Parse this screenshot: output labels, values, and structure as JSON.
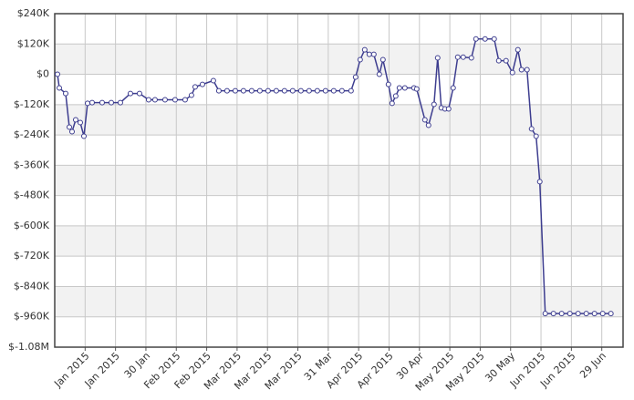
{
  "chart_data": {
    "type": "line",
    "x": [
      0.9,
      1.5,
      3.6,
      4.8,
      5.7,
      6.9,
      8.4,
      9.6,
      10.8,
      12.3,
      15.6,
      18.6,
      21.6,
      24.9,
      27.9,
      30.9,
      33,
      36.3,
      39.6,
      42.9,
      45,
      46.2,
      48.6,
      52.2,
      54,
      56.7,
      59.4,
      62.1,
      64.8,
      67.5,
      70.2,
      72.9,
      75.6,
      78.3,
      81,
      83.7,
      86.4,
      89.1,
      91.8,
      94.5,
      97.5,
      99,
      100.5,
      102,
      103.5,
      105,
      106.8,
      108,
      109.8,
      111,
      112.2,
      113.4,
      115.2,
      118.2,
      119.1,
      121.8,
      123,
      124.8,
      126,
      127.2,
      128.4,
      129.6,
      131.1,
      132.6,
      134.4,
      137.1,
      138.6,
      141.6,
      144.6,
      146.1,
      148.5,
      150.6,
      152.4,
      153.6,
      155.4,
      156.9,
      158.4,
      159.6,
      161.4,
      164.1,
      166.8,
      169.5,
      172.2,
      174.9,
      177.6,
      180.3,
      183
    ],
    "series": [
      {
        "color": "#3d3d8f",
        "values": [
          0,
          -54000,
          -76000,
          -209000,
          -227000,
          -180000,
          -191000,
          -245000,
          -115000,
          -112000,
          -112000,
          -112000,
          -112000,
          -76000,
          -76000,
          -101000,
          -101000,
          -101000,
          -101000,
          -101000,
          -83000,
          -50000,
          -40000,
          -25000,
          -65000,
          -65000,
          -65000,
          -65000,
          -65000,
          -65000,
          -65000,
          -65000,
          -65000,
          -65000,
          -65000,
          -65000,
          -65000,
          -65000,
          -65000,
          -65000,
          -65000,
          -11000,
          58000,
          97000,
          79000,
          79000,
          0,
          58000,
          -40000,
          -115000,
          -86000,
          -54000,
          -54000,
          -54000,
          -58000,
          -180000,
          -202000,
          -119000,
          65000,
          -133000,
          -137000,
          -137000,
          -54000,
          68000,
          68000,
          65000,
          140000,
          140000,
          140000,
          54000,
          54000,
          7000,
          97000,
          18000,
          18000,
          -216000,
          -245000,
          -425000,
          -947000,
          -947000,
          -947000,
          -947000,
          -947000,
          -947000,
          -947000,
          -947000,
          -947000
        ]
      }
    ],
    "xlim": [
      0,
      187
    ],
    "xticks": [
      {
        "value": 10,
        "label": "Jan 2015"
      },
      {
        "value": 20,
        "label": "Jan 2015"
      },
      {
        "value": 30,
        "label": "30 Jan"
      },
      {
        "value": 40,
        "label": "Feb 2015"
      },
      {
        "value": 50,
        "label": "Feb 2015"
      },
      {
        "value": 60,
        "label": "Mar 2015"
      },
      {
        "value": 70,
        "label": "Mar 2015"
      },
      {
        "value": 80,
        "label": "Mar 2015"
      },
      {
        "value": 90,
        "label": "31 Mar"
      },
      {
        "value": 100,
        "label": "Apr 2015"
      },
      {
        "value": 110,
        "label": "Apr 2015"
      },
      {
        "value": 120,
        "label": "30 Apr"
      },
      {
        "value": 130,
        "label": "May 2015"
      },
      {
        "value": 140,
        "label": "May 2015"
      },
      {
        "value": 150,
        "label": "30 May"
      },
      {
        "value": 160,
        "label": "Jun 2015"
      },
      {
        "value": 170,
        "label": "Jun 2015"
      },
      {
        "value": 180,
        "label": "29 Jun"
      }
    ],
    "ylim": [
      -1080000,
      240000
    ],
    "yticks": [
      {
        "value": 240000,
        "label": "$240K"
      },
      {
        "value": 120000,
        "label": "$120K"
      },
      {
        "value": 0,
        "label": "$0"
      },
      {
        "value": -120000,
        "label": "$-120K"
      },
      {
        "value": -240000,
        "label": "$-240K"
      },
      {
        "value": -360000,
        "label": "$-360K"
      },
      {
        "value": -480000,
        "label": "$-480K"
      },
      {
        "value": -600000,
        "label": "$-600K"
      },
      {
        "value": -720000,
        "label": "$-720K"
      },
      {
        "value": -840000,
        "label": "$-840K"
      },
      {
        "value": -960000,
        "label": "$-960K"
      },
      {
        "value": -1080000,
        "label": "$-1.08M"
      }
    ],
    "grid": true
  }
}
